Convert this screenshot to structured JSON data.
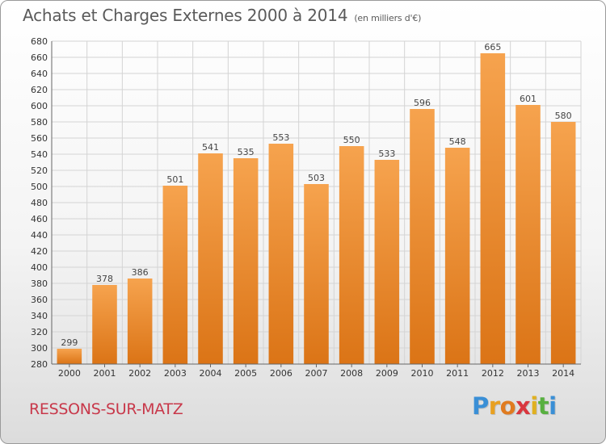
{
  "header": {
    "title": "Achats et Charges Externes 2000 à 2014",
    "subtitle": "(en milliers d'€)"
  },
  "footer": {
    "commune": "RESSONS-SUR-MATZ",
    "logo_letters": [
      "P",
      "r",
      "o",
      "x",
      "i",
      "t",
      "i"
    ],
    "logo_colors": [
      "#3a8fd6",
      "#e8a020",
      "#e07b20",
      "#d9363e",
      "#e0b020",
      "#58b040",
      "#3a8fd6"
    ]
  },
  "colors": {
    "bar_top": "#f6a34e",
    "bar_bottom": "#db7416",
    "grid": "#d4d4d4",
    "axis": "#666666"
  },
  "chart_data": {
    "type": "bar",
    "categories": [
      "2000",
      "2001",
      "2002",
      "2003",
      "2004",
      "2005",
      "2006",
      "2007",
      "2008",
      "2009",
      "2010",
      "2011",
      "2012",
      "2013",
      "2014"
    ],
    "values": [
      299,
      378,
      386,
      501,
      541,
      535,
      553,
      503,
      550,
      533,
      596,
      548,
      665,
      601,
      580
    ],
    "title": "Achats et Charges Externes 2000 à 2014",
    "ylim": [
      280,
      680
    ],
    "ytick_step": 20,
    "grid": true,
    "legend": "none"
  }
}
